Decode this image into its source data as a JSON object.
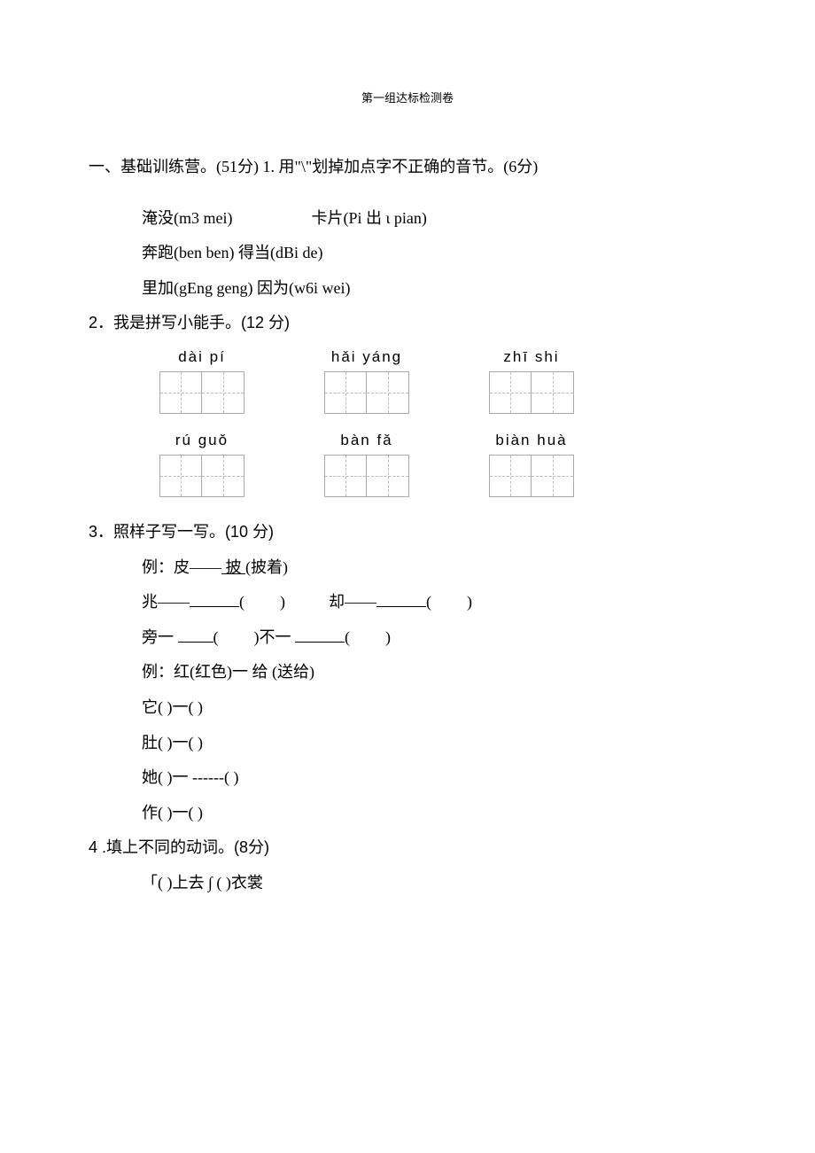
{
  "title": "第一组达标检测卷",
  "section1": {
    "heading": "一、基础训练营。(51分)",
    "q1": {
      "prompt": "1. 用\"\\\"划掉加点字不正确的音节。(6分)",
      "pairs": [
        {
          "left": "淹没(m3 mei)",
          "right": "卡片(Pi 出 ɩ pian)"
        },
        {
          "left": "奔跑(ben ben)",
          "right": "得当(dBi de)"
        },
        {
          "left": "里加(gEng geng)",
          "right": "因为(w6i wei)"
        }
      ]
    },
    "q2": {
      "prompt": "2．我是拼写小能手。(12 分)",
      "row1": [
        {
          "pinyin": "dài pí",
          "cells": 2
        },
        {
          "pinyin": "hǎi   yáng",
          "cells": 2
        },
        {
          "pinyin": "zhī   shi",
          "cells": 2
        }
      ],
      "row2": [
        {
          "pinyin": "rú  guǒ",
          "cells": 2
        },
        {
          "pinyin": "bàn    fǎ",
          "cells": 2
        },
        {
          "pinyin": "biàn   huà",
          "cells": 2
        }
      ]
    },
    "q3": {
      "prompt": "3．照样子写一写。(10 分)",
      "example1_prefix": "例：皮——",
      "example1_ul": "  披  ",
      "example1_suffix": "(披着)",
      "lines_a": [
        {
          "left": "兆——",
          "right_prefix": "却——"
        },
        {
          "left": "旁一",
          "right_prefix": "不一"
        }
      ],
      "example2": "例：红(红色)一 给 (送给)",
      "lines_b": [
        "它(       )一(                 )",
        "肚(       )一(                 )",
        "她(       )一 ------(        )",
        "作(       )一(                 )"
      ]
    },
    "q4": {
      "prompt": "4 .填上不同的动词。(8分)",
      "row": "「(       )上去 ∫  (               )衣裳"
    }
  }
}
